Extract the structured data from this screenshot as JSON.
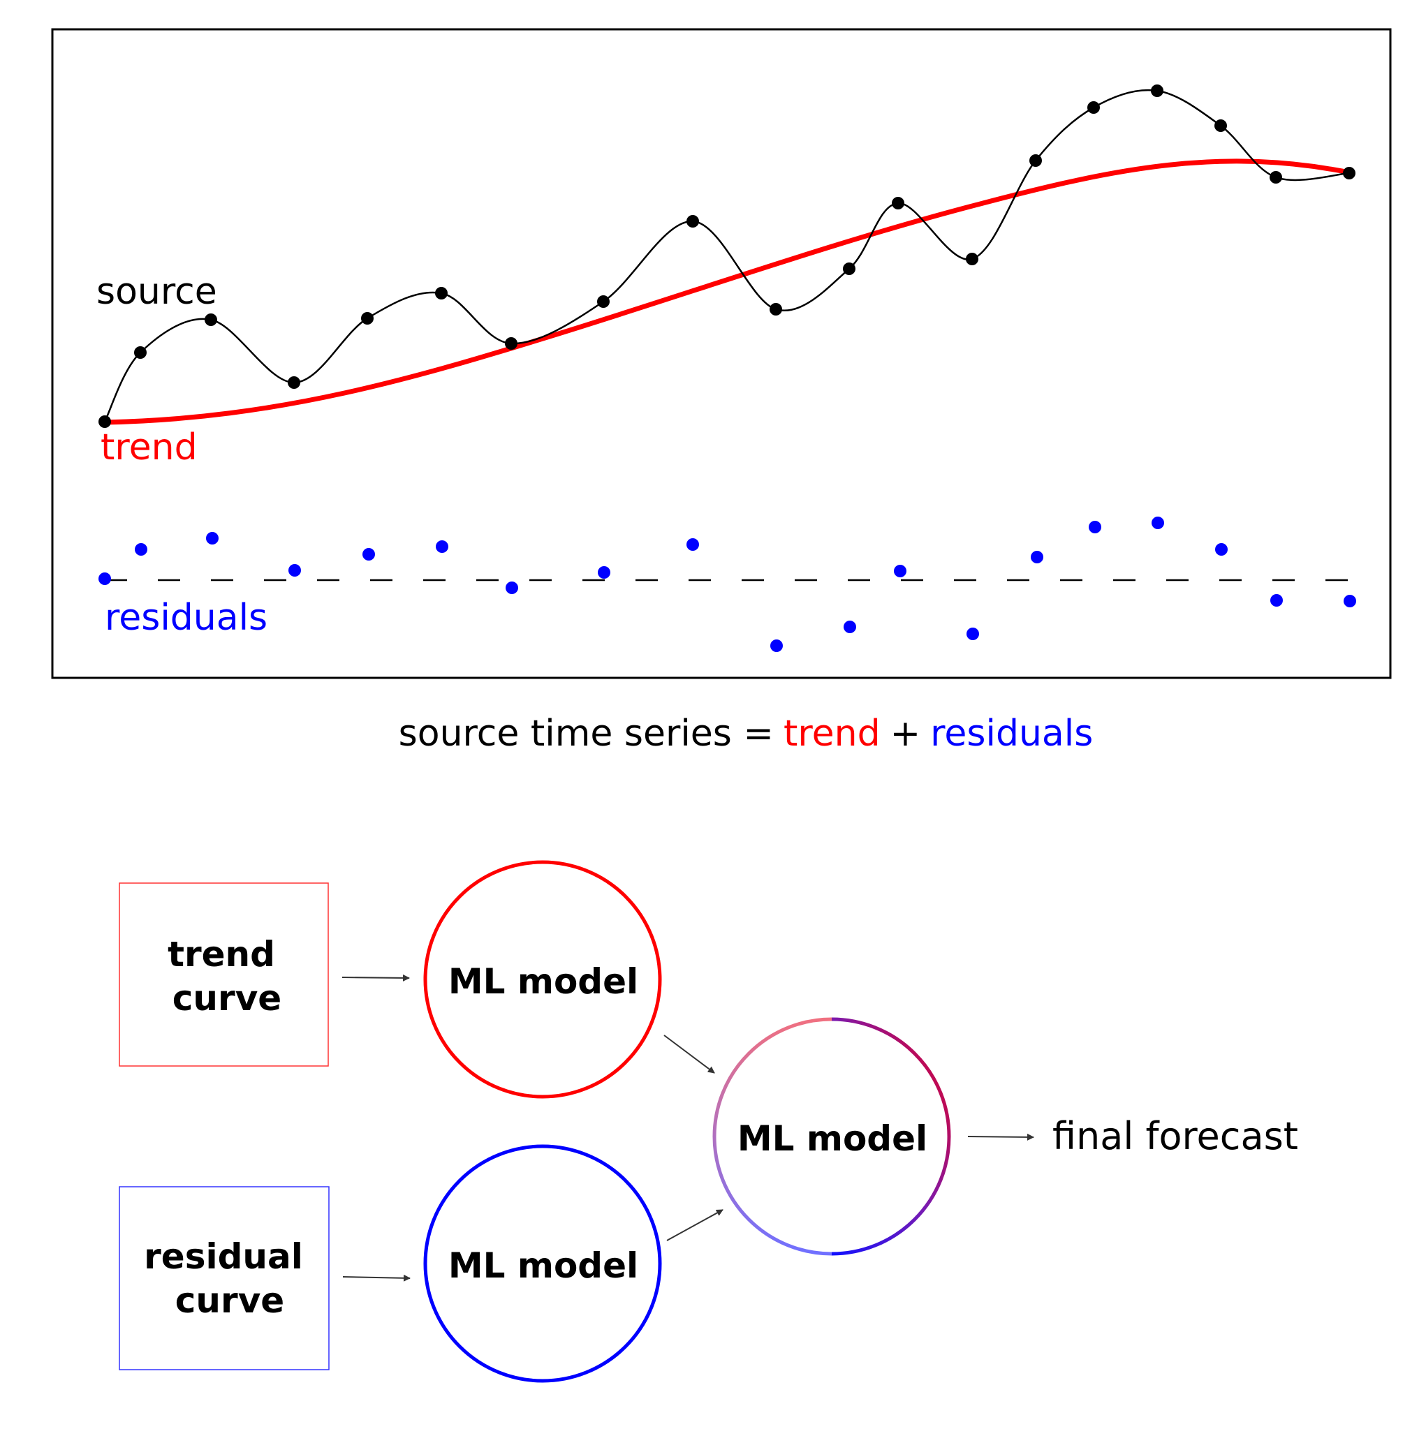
{
  "colors": {
    "source": "#000000",
    "trend": "#ff0000",
    "residual": "#0000ff",
    "outline": "#000000",
    "arrow": "#333333"
  },
  "chart": {
    "labels": {
      "source": "source",
      "trend": "trend",
      "residuals": "residuals"
    }
  },
  "equation": {
    "lhs": "source time series =",
    "trend": "trend",
    "plus": "+",
    "residuals": "residuals"
  },
  "flow": {
    "trend_box": {
      "line1": "trend",
      "line2": "curve"
    },
    "residual_box": {
      "line1": "residual",
      "line2": "curve"
    },
    "trend_model": "ML model",
    "residual_model": "ML model",
    "combined_model": "ML model",
    "output": "final forecast"
  }
}
